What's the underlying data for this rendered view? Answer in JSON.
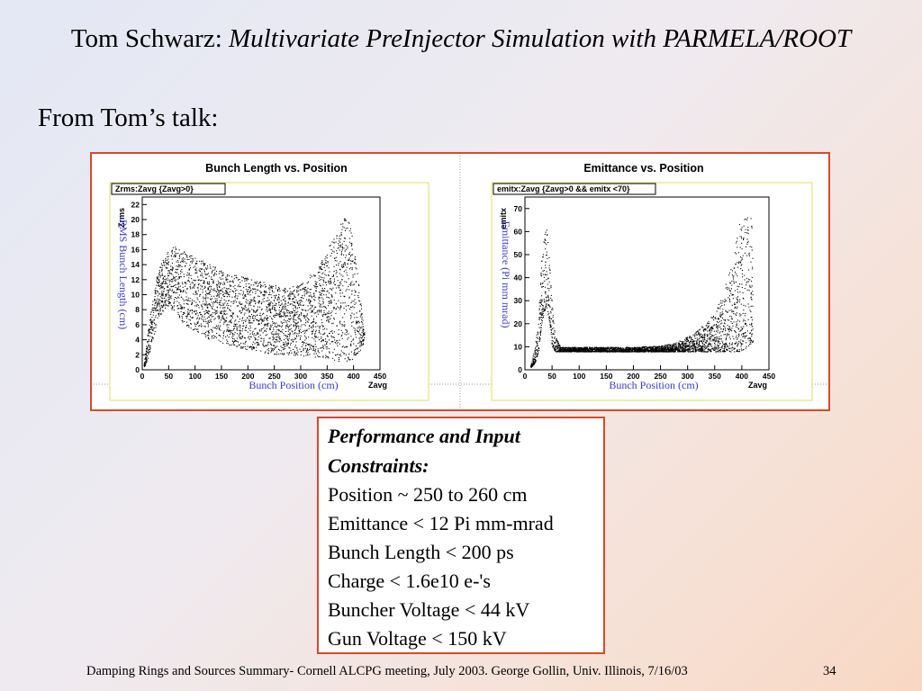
{
  "slide": {
    "title_plain": "Tom Schwarz: ",
    "title_italic": "Multivariate PreInjector Simulation with PARMELA/ROOT",
    "subtitle": "From Tom’s talk:",
    "footer": "Damping Rings and Sources Summary- Cornell ALCPG meeting, July 2003. George Gollin, Univ. Illinois, 7/16/03",
    "page_number": "34"
  },
  "constraints": {
    "heading_line1": "Performance and Input",
    "heading_line2": "Constraints:",
    "items": [
      "Position ~ 250 to 260 cm",
      "Emittance < 12 Pi mm-mrad",
      "Bunch Length < 200 ps",
      "Charge < 1.6e10 e-'s",
      "Buncher Voltage < 44 kV",
      "Gun Voltage < 150 kV"
    ]
  },
  "colors": {
    "panel_border": "#d84a2a",
    "axis_label": "#3a3ad8",
    "stat_box_border": "#e4e47a"
  },
  "chart_data": [
    {
      "type": "scatter",
      "title": "Bunch Length vs. Position",
      "stat_label": "Zrms:Zavg {Zavg>0}",
      "xname": "Zavg",
      "yname": "Zrms",
      "xlabel": "Bunch Position (cm)",
      "ylabel": "RMS Bunch Length (cm)",
      "xlim": [
        0,
        450
      ],
      "ylim": [
        0,
        23
      ],
      "xticks": [
        0,
        50,
        100,
        150,
        200,
        250,
        300,
        350,
        400,
        450
      ],
      "yticks": [
        0,
        2,
        4,
        6,
        8,
        10,
        12,
        14,
        16,
        18,
        20,
        22
      ],
      "upper_envelope": [
        [
          3,
          0.8
        ],
        [
          10,
          5
        ],
        [
          20,
          10
        ],
        [
          30,
          13.5
        ],
        [
          45,
          15.5
        ],
        [
          60,
          16.5
        ],
        [
          80,
          15.8
        ],
        [
          100,
          15
        ],
        [
          130,
          14
        ],
        [
          160,
          13
        ],
        [
          200,
          12.3
        ],
        [
          240,
          11.5
        ],
        [
          270,
          11
        ],
        [
          300,
          11.5
        ],
        [
          330,
          13.5
        ],
        [
          350,
          16
        ],
        [
          370,
          19
        ],
        [
          385,
          20.5
        ],
        [
          395,
          19
        ],
        [
          405,
          14
        ],
        [
          415,
          8
        ],
        [
          420,
          5
        ]
      ],
      "lower_envelope": [
        [
          3,
          0.3
        ],
        [
          10,
          1.5
        ],
        [
          20,
          4
        ],
        [
          30,
          7
        ],
        [
          45,
          8.5
        ],
        [
          60,
          7.5
        ],
        [
          80,
          6
        ],
        [
          100,
          5
        ],
        [
          130,
          4
        ],
        [
          160,
          3.3
        ],
        [
          200,
          2.7
        ],
        [
          240,
          2.2
        ],
        [
          280,
          2
        ],
        [
          320,
          1.8
        ],
        [
          350,
          1.5
        ],
        [
          370,
          1.2
        ],
        [
          385,
          1.2
        ],
        [
          400,
          1.5
        ],
        [
          415,
          2.5
        ],
        [
          420,
          4
        ]
      ]
    },
    {
      "type": "scatter",
      "title": "Emittance vs. Position",
      "stat_label": "emitx:Zavg {Zavg>0 && emitx <70}",
      "xname": "Zavg",
      "yname": "emitx",
      "xlabel": "Bunch Position (cm)",
      "ylabel": "Emittance (Pi mm mrad)",
      "xlim": [
        0,
        450
      ],
      "ylim": [
        0,
        75
      ],
      "xticks": [
        0,
        50,
        100,
        150,
        200,
        250,
        300,
        350,
        400,
        450
      ],
      "yticks": [
        0,
        10,
        20,
        30,
        40,
        50,
        60,
        70
      ],
      "upper_envelope": [
        [
          10,
          2
        ],
        [
          18,
          10
        ],
        [
          25,
          25
        ],
        [
          30,
          48
        ],
        [
          38,
          65
        ],
        [
          45,
          48
        ],
        [
          50,
          30
        ],
        [
          55,
          15
        ],
        [
          65,
          10
        ],
        [
          100,
          10
        ],
        [
          150,
          10
        ],
        [
          200,
          10
        ],
        [
          250,
          10.5
        ],
        [
          280,
          12
        ],
        [
          310,
          16
        ],
        [
          340,
          22
        ],
        [
          360,
          30
        ],
        [
          380,
          45
        ],
        [
          395,
          65
        ],
        [
          410,
          70
        ],
        [
          420,
          65
        ]
      ],
      "lower_envelope": [
        [
          10,
          1
        ],
        [
          18,
          3
        ],
        [
          25,
          8
        ],
        [
          30,
          20
        ],
        [
          38,
          28
        ],
        [
          45,
          20
        ],
        [
          50,
          10
        ],
        [
          55,
          8
        ],
        [
          65,
          8
        ],
        [
          100,
          8
        ],
        [
          150,
          8
        ],
        [
          200,
          8
        ],
        [
          250,
          8
        ],
        [
          280,
          8
        ],
        [
          310,
          8
        ],
        [
          340,
          8
        ],
        [
          360,
          8
        ],
        [
          380,
          8
        ],
        [
          395,
          8
        ],
        [
          410,
          10
        ],
        [
          420,
          12
        ]
      ]
    }
  ]
}
